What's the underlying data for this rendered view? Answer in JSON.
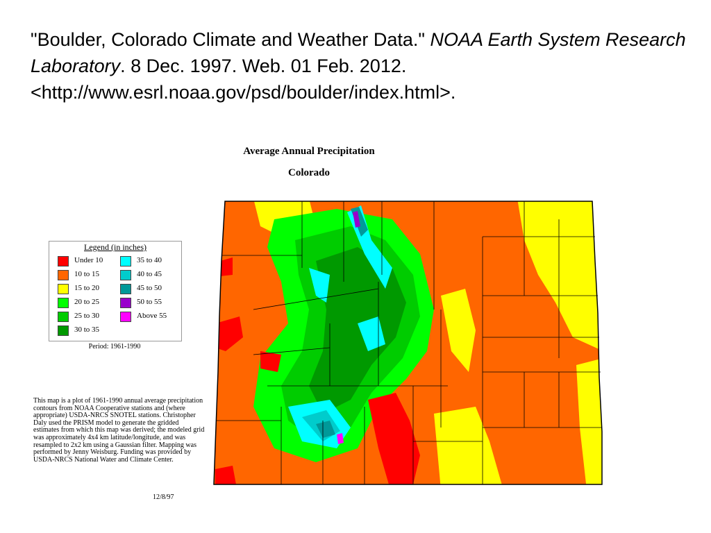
{
  "citation": {
    "part1": "\"Boulder, Colorado Climate and Weather Data.\" ",
    "source_italic": "NOAA Earth System Research Laboratory",
    "part2": ". 8 Dec. 1997. Web. 01 Feb. 2012. <http://www.esrl.noaa.gov/psd/boulder/index.html>."
  },
  "map": {
    "title": "Average Annual Precipitation",
    "subtitle": "Colorado",
    "period": "Period: 1961-1990",
    "notes": "This map is a plot of 1961-1990 annual average precipitation contours from NOAA Cooperative stations and (where appropriate) USDA-NRCS SNOTEL stations. Christopher Daly used the PRISM model to generate the gridded estimates from which this map was derived; the modeled grid was approximately 4x4 km latitude/longitude, and was resampled to 2x2 km using a Gaussian filter. Mapping was performed by Jenny Weisburg. Funding was provided by USDA-NRCS National Water and Climate Center.",
    "date": "12/8/97"
  },
  "legend": {
    "title": "Legend (in inches)",
    "items": [
      {
        "label": "Under 10",
        "color": "#ff0000"
      },
      {
        "label": "10 to 15",
        "color": "#ff6600"
      },
      {
        "label": "15 to 20",
        "color": "#ffff00"
      },
      {
        "label": "20 to 25",
        "color": "#00ff00"
      },
      {
        "label": "25 to 30",
        "color": "#00cc00"
      },
      {
        "label": "30 to 35",
        "color": "#009900"
      },
      {
        "label": "35 to 40",
        "color": "#00ffff"
      },
      {
        "label": "40 to 45",
        "color": "#00cccc"
      },
      {
        "label": "45 to 50",
        "color": "#009999"
      },
      {
        "label": "50 to 55",
        "color": "#9900cc"
      },
      {
        "label": "Above 55",
        "color": "#ff00ff"
      }
    ]
  }
}
